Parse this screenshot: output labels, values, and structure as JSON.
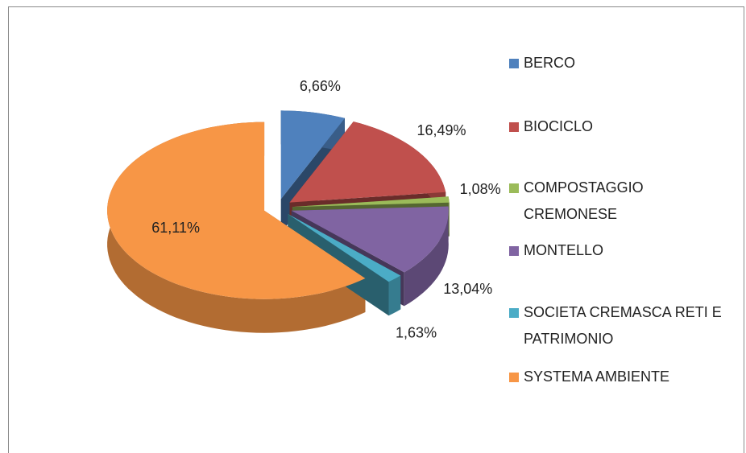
{
  "chart_data": {
    "type": "pie",
    "categories": [
      "BERCO",
      "BIOCICLO",
      "COMPOSTAGGIO CREMONESE",
      "MONTELLO",
      "SOCIETA CREMASCA RETI E PATRIMONIO",
      "SYSTEMA AMBIENTE"
    ],
    "values": [
      6.66,
      16.49,
      1.08,
      13.04,
      1.63,
      61.11
    ],
    "value_labels": [
      "6,66%",
      "16,49%",
      "1,08%",
      "13,04%",
      "1,63%",
      "61,11%"
    ],
    "colors": [
      "#4f81bd",
      "#c0504d",
      "#9bbb59",
      "#8064a2",
      "#4bacc6",
      "#f79646"
    ],
    "legend": "right"
  }
}
